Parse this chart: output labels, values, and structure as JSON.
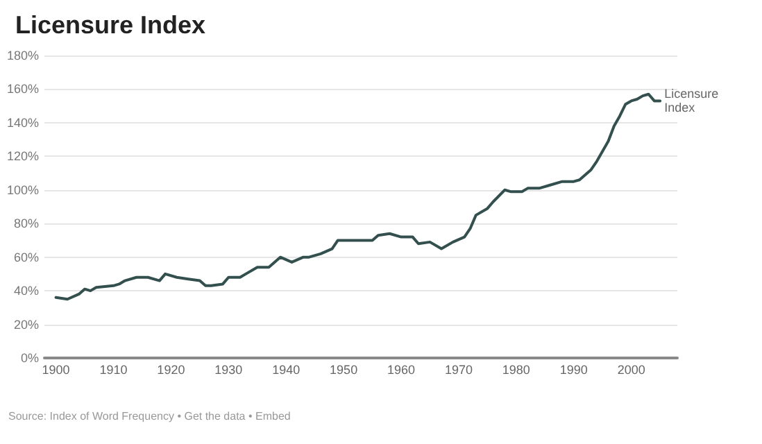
{
  "chart_data": {
    "type": "line",
    "title": "Licensure Index",
    "x": [
      1900,
      1902,
      1904,
      1905,
      1906,
      1907,
      1910,
      1911,
      1912,
      1914,
      1916,
      1918,
      1919,
      1921,
      1923,
      1925,
      1926,
      1927,
      1929,
      1930,
      1932,
      1933,
      1935,
      1937,
      1939,
      1941,
      1943,
      1944,
      1946,
      1948,
      1949,
      1951,
      1952,
      1954,
      1955,
      1956,
      1958,
      1960,
      1962,
      1963,
      1965,
      1967,
      1969,
      1971,
      1972,
      1973,
      1975,
      1976,
      1978,
      1979,
      1981,
      1982,
      1984,
      1986,
      1988,
      1990,
      1991,
      1993,
      1994,
      1996,
      1997,
      1998,
      1999,
      2000,
      2001,
      2002,
      2003,
      2004,
      2005
    ],
    "series": [
      {
        "name": "Licensure Index",
        "color": "#33504f",
        "values": [
          36,
          35,
          38,
          41,
          40,
          42,
          43,
          44,
          46,
          48,
          48,
          46,
          50,
          48,
          47,
          46,
          43,
          43,
          44,
          48,
          48,
          50,
          54,
          54,
          60,
          57,
          60,
          60,
          62,
          65,
          70,
          70,
          70,
          70,
          70,
          73,
          74,
          72,
          72,
          68,
          69,
          65,
          69,
          72,
          77,
          85,
          89,
          93,
          100,
          99,
          99,
          101,
          101,
          103,
          105,
          105,
          106,
          112,
          117,
          129,
          138,
          144,
          151,
          153,
          154,
          156,
          157,
          153,
          153
        ]
      }
    ],
    "xlim": [
      1898,
      2008
    ],
    "xticks": [
      1900,
      1910,
      1920,
      1930,
      1940,
      1950,
      1960,
      1970,
      1980,
      1990,
      2000
    ],
    "ylim": [
      0,
      180
    ],
    "yticks": [
      {
        "value": 0,
        "label": "0%"
      },
      {
        "value": 20,
        "label": "20%"
      },
      {
        "value": 40,
        "label": "40%"
      },
      {
        "value": 60,
        "label": "60%"
      },
      {
        "value": 80,
        "label": "80%"
      },
      {
        "value": 100,
        "label": "100%"
      },
      {
        "value": 120,
        "label": "120%"
      },
      {
        "value": 140,
        "label": "140%"
      },
      {
        "value": 160,
        "label": "160%"
      },
      {
        "value": 180,
        "label": "180%"
      }
    ],
    "grid": "y",
    "marker": "none",
    "line_style": "solid",
    "legend": false,
    "annotations": [
      "Source: Index of Word Frequency • Get the data • Embed"
    ]
  }
}
